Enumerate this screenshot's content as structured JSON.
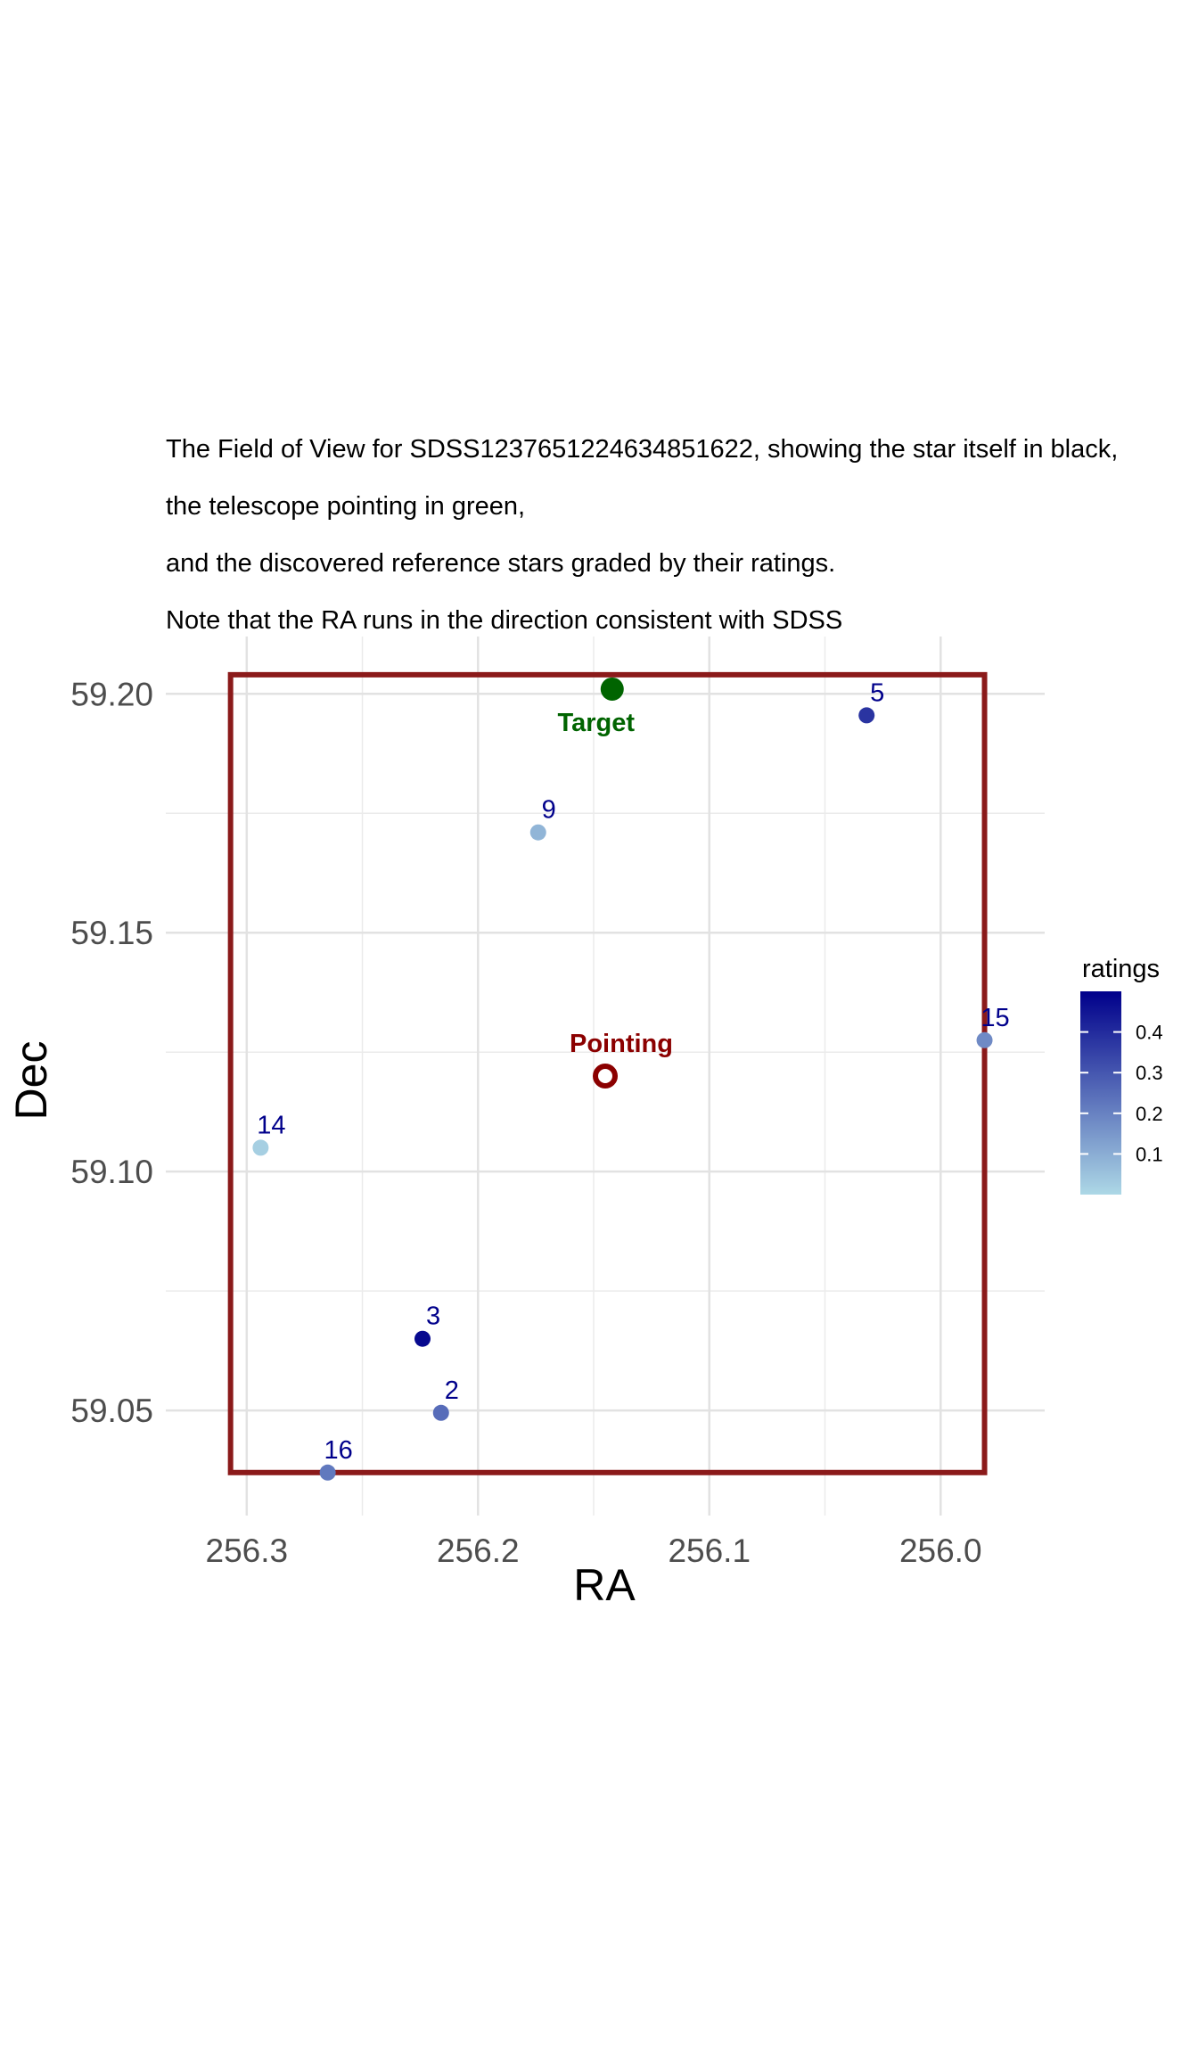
{
  "title_lines": [
    "The Field of View for SDSS1237651224634851622, showing the star itself in black,",
    "the telescope pointing in green,",
    "and the discovered reference stars graded by their ratings.",
    "Note that the RA runs in the direction consistent with SDSS"
  ],
  "chart_data": {
    "type": "scatter",
    "xlabel": "RA",
    "ylabel": "Dec",
    "x_reversed": true,
    "xlim": [
      256.335,
      255.955
    ],
    "ylim": [
      59.028,
      59.212
    ],
    "x_ticks": [
      256.3,
      256.2,
      256.1,
      256.0
    ],
    "x_tick_labels": [
      "256.3",
      "256.2",
      "256.1",
      "256.0"
    ],
    "y_ticks": [
      59.05,
      59.1,
      59.15,
      59.2
    ],
    "y_tick_labels": [
      "59.05",
      "59.10",
      "59.15",
      "59.20"
    ],
    "grid": true,
    "field_box": {
      "ra_min": 255.981,
      "ra_max": 256.307,
      "dec_min": 59.037,
      "dec_max": 59.204,
      "color": "#8b1a1a"
    },
    "target": {
      "label": "Target",
      "ra": 256.142,
      "dec": 59.201,
      "color": "#006400"
    },
    "pointing": {
      "label": "Pointing",
      "ra": 256.145,
      "dec": 59.12,
      "color": "#8b0000"
    },
    "stars": [
      {
        "label": "5",
        "ra": 256.032,
        "dec": 59.1955,
        "rating": 0.38
      },
      {
        "label": "9",
        "ra": 256.174,
        "dec": 59.171,
        "rating": 0.08
      },
      {
        "label": "15",
        "ra": 255.981,
        "dec": 59.1275,
        "rating": 0.18
      },
      {
        "label": "14",
        "ra": 256.294,
        "dec": 59.105,
        "rating": 0.02
      },
      {
        "label": "3",
        "ra": 256.224,
        "dec": 59.065,
        "rating": 0.48
      },
      {
        "label": "2",
        "ra": 256.216,
        "dec": 59.0495,
        "rating": 0.25
      },
      {
        "label": "16",
        "ra": 256.265,
        "dec": 59.037,
        "rating": 0.22
      }
    ],
    "colorbar": {
      "title": "ratings",
      "min": 0.0,
      "max": 0.5,
      "low_color": "#add8e6",
      "high_color": "#00008b",
      "ticks": [
        0.1,
        0.2,
        0.3,
        0.4
      ],
      "tick_labels": [
        "0.1",
        "0.2",
        "0.3",
        "0.4"
      ]
    }
  }
}
